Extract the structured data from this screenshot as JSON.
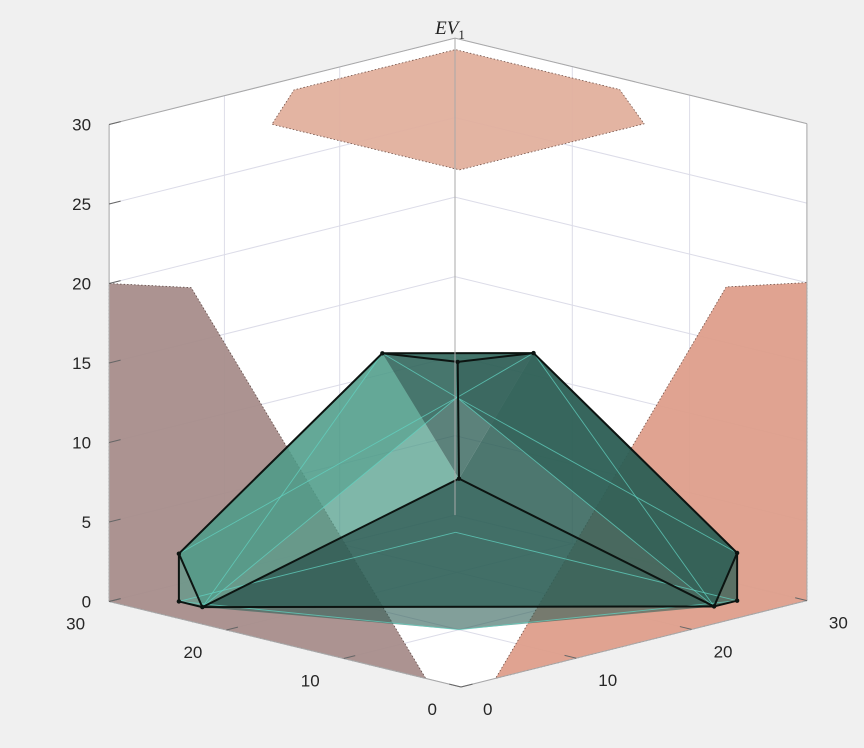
{
  "chart_data": {
    "type": "3d-polytope",
    "title_symbol": "EV",
    "title_subscript": "1",
    "xlabel": "",
    "ylabel": "",
    "zlabel": "",
    "xlim": [
      0,
      30
    ],
    "ylim": [
      0,
      30
    ],
    "zlim": [
      0,
      30
    ],
    "x_ticks": [
      "0",
      "10",
      "20",
      "30"
    ],
    "y_ticks": [
      "0",
      "10",
      "20",
      "30"
    ],
    "z_ticks": [
      "0",
      "5",
      "10",
      "15",
      "20",
      "25",
      "30"
    ],
    "grid": true,
    "view": "isometric, viewed from the (0,0) corner",
    "vertices": [
      {
        "id": "A",
        "x": 27,
        "y": 3,
        "z": 3
      },
      {
        "id": "B",
        "x": 3,
        "y": 27,
        "z": 3
      },
      {
        "id": "C",
        "x": 27,
        "y": 3,
        "z": 0
      },
      {
        "id": "D",
        "x": 3,
        "y": 27,
        "z": 0
      },
      {
        "id": "E",
        "x": 10,
        "y": 10,
        "z": 0
      },
      {
        "id": "F",
        "x": 25,
        "y": 3,
        "z": 0
      },
      {
        "id": "G",
        "x": 3,
        "y": 25,
        "z": 0
      },
      {
        "id": "H",
        "x": 10,
        "y": 10,
        "z": 9.5
      },
      {
        "id": "I",
        "x": 16.5,
        "y": 16.5,
        "z": 14.5
      },
      {
        "id": "J",
        "x": 18.5,
        "y": 12,
        "z": 15.5
      },
      {
        "id": "K",
        "x": 12,
        "y": 18.5,
        "z": 15.5
      },
      {
        "id": "L",
        "x": 27,
        "y": 27,
        "z": 0
      },
      {
        "id": "M",
        "x": 23,
        "y": 27,
        "z": 0
      },
      {
        "id": "N",
        "x": 27,
        "y": 23,
        "z": 0
      },
      {
        "id": "O",
        "x": 20,
        "y": 20,
        "z": 11
      }
    ],
    "projections": [
      {
        "plane": "top (z = 30)",
        "color": "#e2b09e"
      },
      {
        "plane": "wall x = 0",
        "color": "#a88e8c"
      },
      {
        "plane": "wall y = 0",
        "color": "#df9f8c"
      }
    ],
    "colors": {
      "solid_fill": "#4e9b88",
      "solid_dark": "#2e5f56",
      "edge": "#0c1411",
      "inner_edge": "#61d3c2",
      "grid": "#dcdce8",
      "axis": "#a8a8a8"
    }
  }
}
